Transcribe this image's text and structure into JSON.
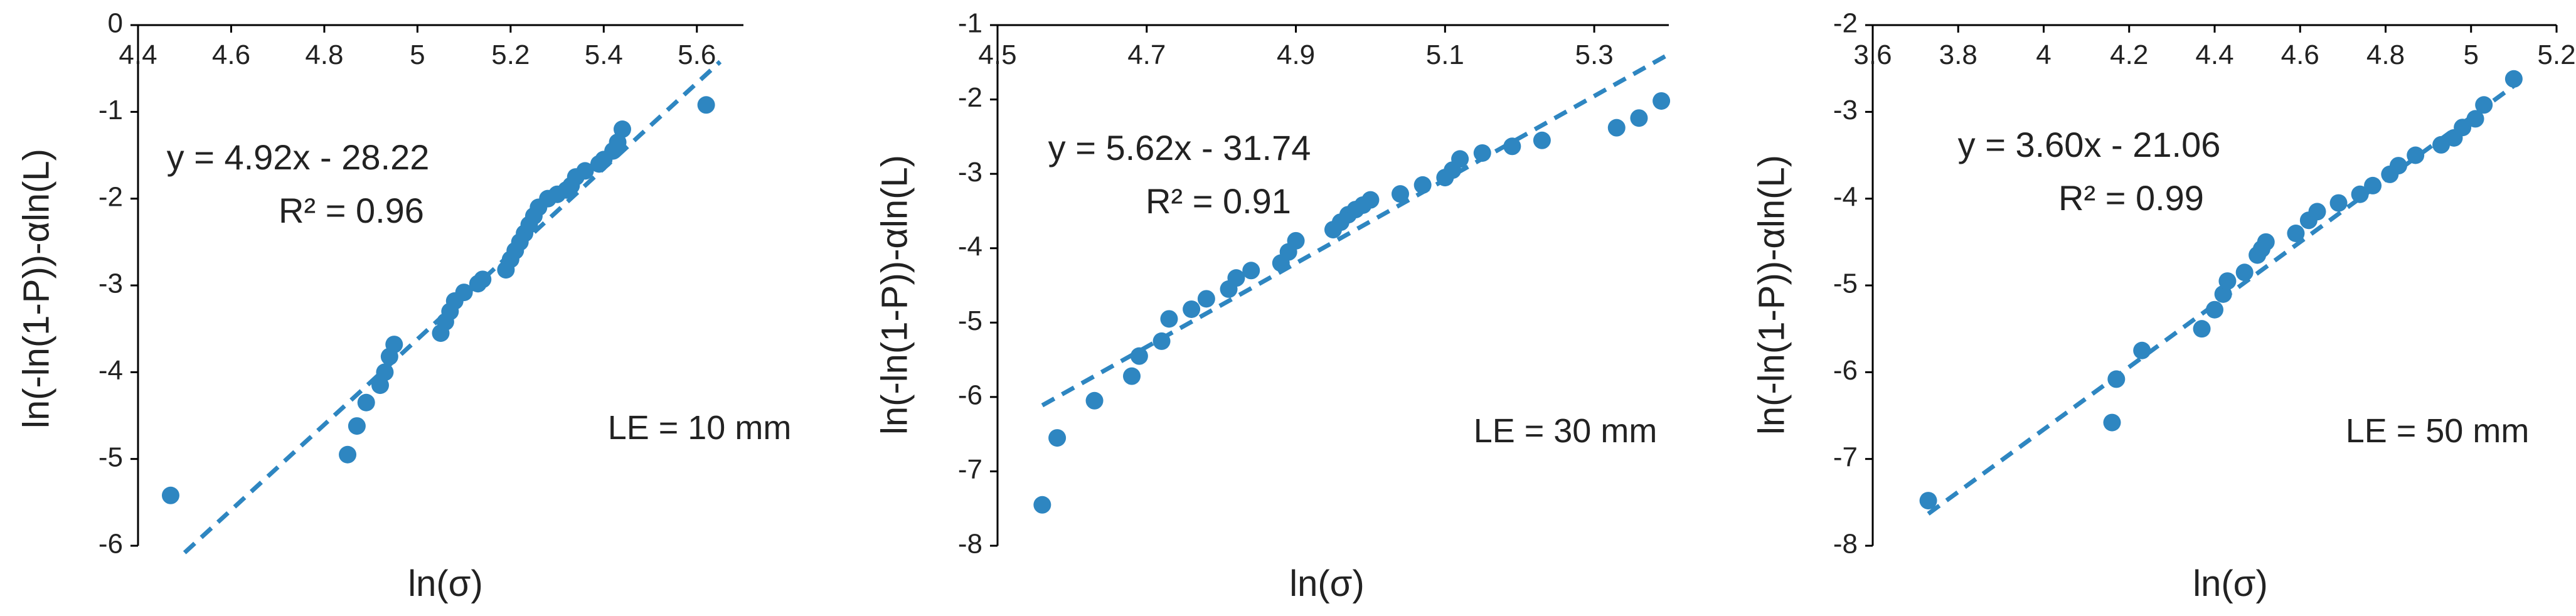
{
  "chart_data": [
    {
      "type": "scatter",
      "xlabel": "ln(σ)",
      "ylabel": "ln(-ln(1-P))-αln(L)",
      "xlim": [
        4.4,
        5.7
      ],
      "ylim": [
        -6,
        0
      ],
      "xticks": [
        "4.4",
        "4.6",
        "4.8",
        "5",
        "5.2",
        "5.4",
        "5.6"
      ],
      "yticks": [
        "0",
        "-1",
        "-2",
        "-3",
        "-4",
        "-5",
        "-6"
      ],
      "equation": "y = 4.92x - 28.22",
      "r2": "R² = 0.96",
      "le_label": "LE = 10 mm",
      "trendline": {
        "slope": 4.92,
        "intercept": -28.22,
        "x_range": [
          4.5,
          5.65
        ]
      },
      "series": [
        {
          "name": "data",
          "x": [
            4.47,
            4.85,
            4.87,
            4.89,
            4.92,
            4.93,
            4.94,
            4.95,
            5.05,
            5.06,
            5.07,
            5.08,
            5.1,
            5.13,
            5.14,
            5.19,
            5.2,
            5.21,
            5.22,
            5.23,
            5.24,
            5.25,
            5.26,
            5.28,
            5.3,
            5.32,
            5.33,
            5.34,
            5.36,
            5.39,
            5.4,
            5.42,
            5.43,
            5.44,
            5.62
          ],
          "y": [
            -5.42,
            -4.95,
            -4.62,
            -4.35,
            -4.15,
            -4.0,
            -3.82,
            -3.68,
            -3.55,
            -3.42,
            -3.3,
            -3.18,
            -3.08,
            -2.98,
            -2.93,
            -2.82,
            -2.7,
            -2.6,
            -2.5,
            -2.4,
            -2.3,
            -2.2,
            -2.1,
            -2.0,
            -1.95,
            -1.9,
            -1.85,
            -1.75,
            -1.68,
            -1.6,
            -1.55,
            -1.45,
            -1.35,
            -1.2,
            -0.92
          ]
        }
      ]
    },
    {
      "type": "scatter",
      "xlabel": "ln(σ)",
      "ylabel": "ln(-ln(1-P))-αln(L)",
      "xlim": [
        4.5,
        5.4
      ],
      "ylim": [
        -8,
        -1
      ],
      "xticks": [
        "4.5",
        "4.7",
        "4.9",
        "5.1",
        "5.3"
      ],
      "yticks": [
        "-1",
        "-2",
        "-3",
        "-4",
        "-5",
        "-6",
        "-7",
        "-8"
      ],
      "equation": "y = 5.62x - 31.74",
      "r2": "R² = 0.91",
      "le_label": "LE = 30 mm",
      "trendline": {
        "slope": 5.62,
        "intercept": -31.74,
        "x_range": [
          4.56,
          5.4
        ]
      },
      "series": [
        {
          "name": "data",
          "x": [
            4.56,
            4.58,
            4.63,
            4.68,
            4.69,
            4.72,
            4.73,
            4.76,
            4.78,
            4.81,
            4.82,
            4.84,
            4.88,
            4.89,
            4.9,
            4.95,
            4.96,
            4.97,
            4.98,
            4.99,
            5.0,
            5.04,
            5.07,
            5.1,
            5.11,
            5.12,
            5.15,
            5.19,
            5.23,
            5.33,
            5.36,
            5.39
          ],
          "y": [
            -7.45,
            -6.55,
            -6.05,
            -5.72,
            -5.45,
            -5.25,
            -4.95,
            -4.82,
            -4.68,
            -4.55,
            -4.4,
            -4.3,
            -4.2,
            -4.05,
            -3.9,
            -3.75,
            -3.65,
            -3.55,
            -3.48,
            -3.42,
            -3.35,
            -3.27,
            -3.15,
            -3.05,
            -2.95,
            -2.8,
            -2.72,
            -2.63,
            -2.55,
            -2.38,
            -2.25,
            -2.02
          ]
        }
      ]
    },
    {
      "type": "scatter",
      "xlabel": "ln(σ)",
      "ylabel": "ln(-ln(1-P))-αln(L)",
      "xlim": [
        3.6,
        5.2
      ],
      "ylim": [
        -8,
        -2
      ],
      "xticks": [
        "3.6",
        "3.8",
        "4",
        "4.2",
        "4.4",
        "4.6",
        "4.8",
        "5",
        "5.2"
      ],
      "yticks": [
        "-2",
        "-3",
        "-4",
        "-5",
        "-6",
        "-7",
        "-8"
      ],
      "equation": "y = 3.60x - 21.06",
      "r2": "R² = 0.99",
      "le_label": "LE = 50 mm",
      "trendline": {
        "slope": 3.6,
        "intercept": -21.06,
        "x_range": [
          3.73,
          5.1
        ]
      },
      "series": [
        {
          "name": "data",
          "x": [
            3.73,
            4.16,
            4.17,
            4.23,
            4.37,
            4.4,
            4.42,
            4.43,
            4.47,
            4.5,
            4.51,
            4.52,
            4.59,
            4.62,
            4.64,
            4.69,
            4.74,
            4.77,
            4.81,
            4.83,
            4.87,
            4.93,
            4.96,
            4.98,
            5.01,
            5.03,
            5.1
          ],
          "y": [
            -7.48,
            -6.58,
            -6.08,
            -5.75,
            -5.5,
            -5.28,
            -5.1,
            -4.95,
            -4.85,
            -4.65,
            -4.58,
            -4.5,
            -4.4,
            -4.25,
            -4.15,
            -4.05,
            -3.95,
            -3.85,
            -3.72,
            -3.62,
            -3.5,
            -3.38,
            -3.3,
            -3.18,
            -3.08,
            -2.92,
            -2.62
          ]
        }
      ]
    }
  ]
}
